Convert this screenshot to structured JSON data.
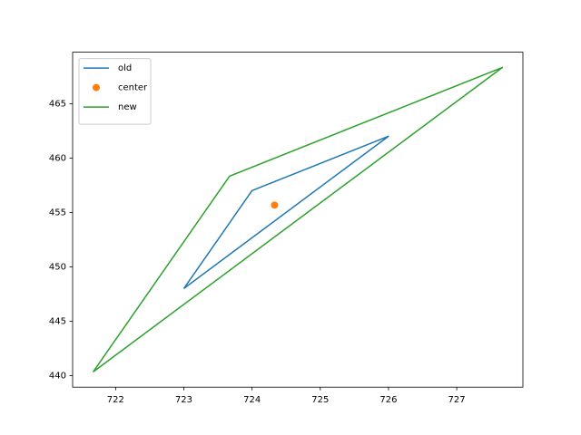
{
  "chart_data": {
    "type": "line",
    "series": [
      {
        "name": "old",
        "style": "line",
        "color": "#1f77b4",
        "x": [
          723,
          724,
          726,
          723
        ],
        "values": [
          448,
          457,
          462,
          448
        ]
      },
      {
        "name": "center",
        "style": "marker",
        "color": "#ff7f0e",
        "x": [
          724.33
        ],
        "values": [
          455.67
        ]
      },
      {
        "name": "new",
        "style": "line",
        "color": "#2ca02c",
        "x": [
          721.67,
          723.67,
          727.67,
          721.67
        ],
        "values": [
          440.33,
          458.33,
          468.33,
          440.33
        ]
      }
    ],
    "xlim": [
      721.37,
      727.97
    ],
    "xticks": [
      722,
      723,
      724,
      725,
      726,
      727
    ],
    "ylim": [
      438.93,
      469.73
    ],
    "yticks": [
      440,
      445,
      450,
      455,
      460,
      465
    ],
    "grid": false,
    "legend": "upper left"
  }
}
